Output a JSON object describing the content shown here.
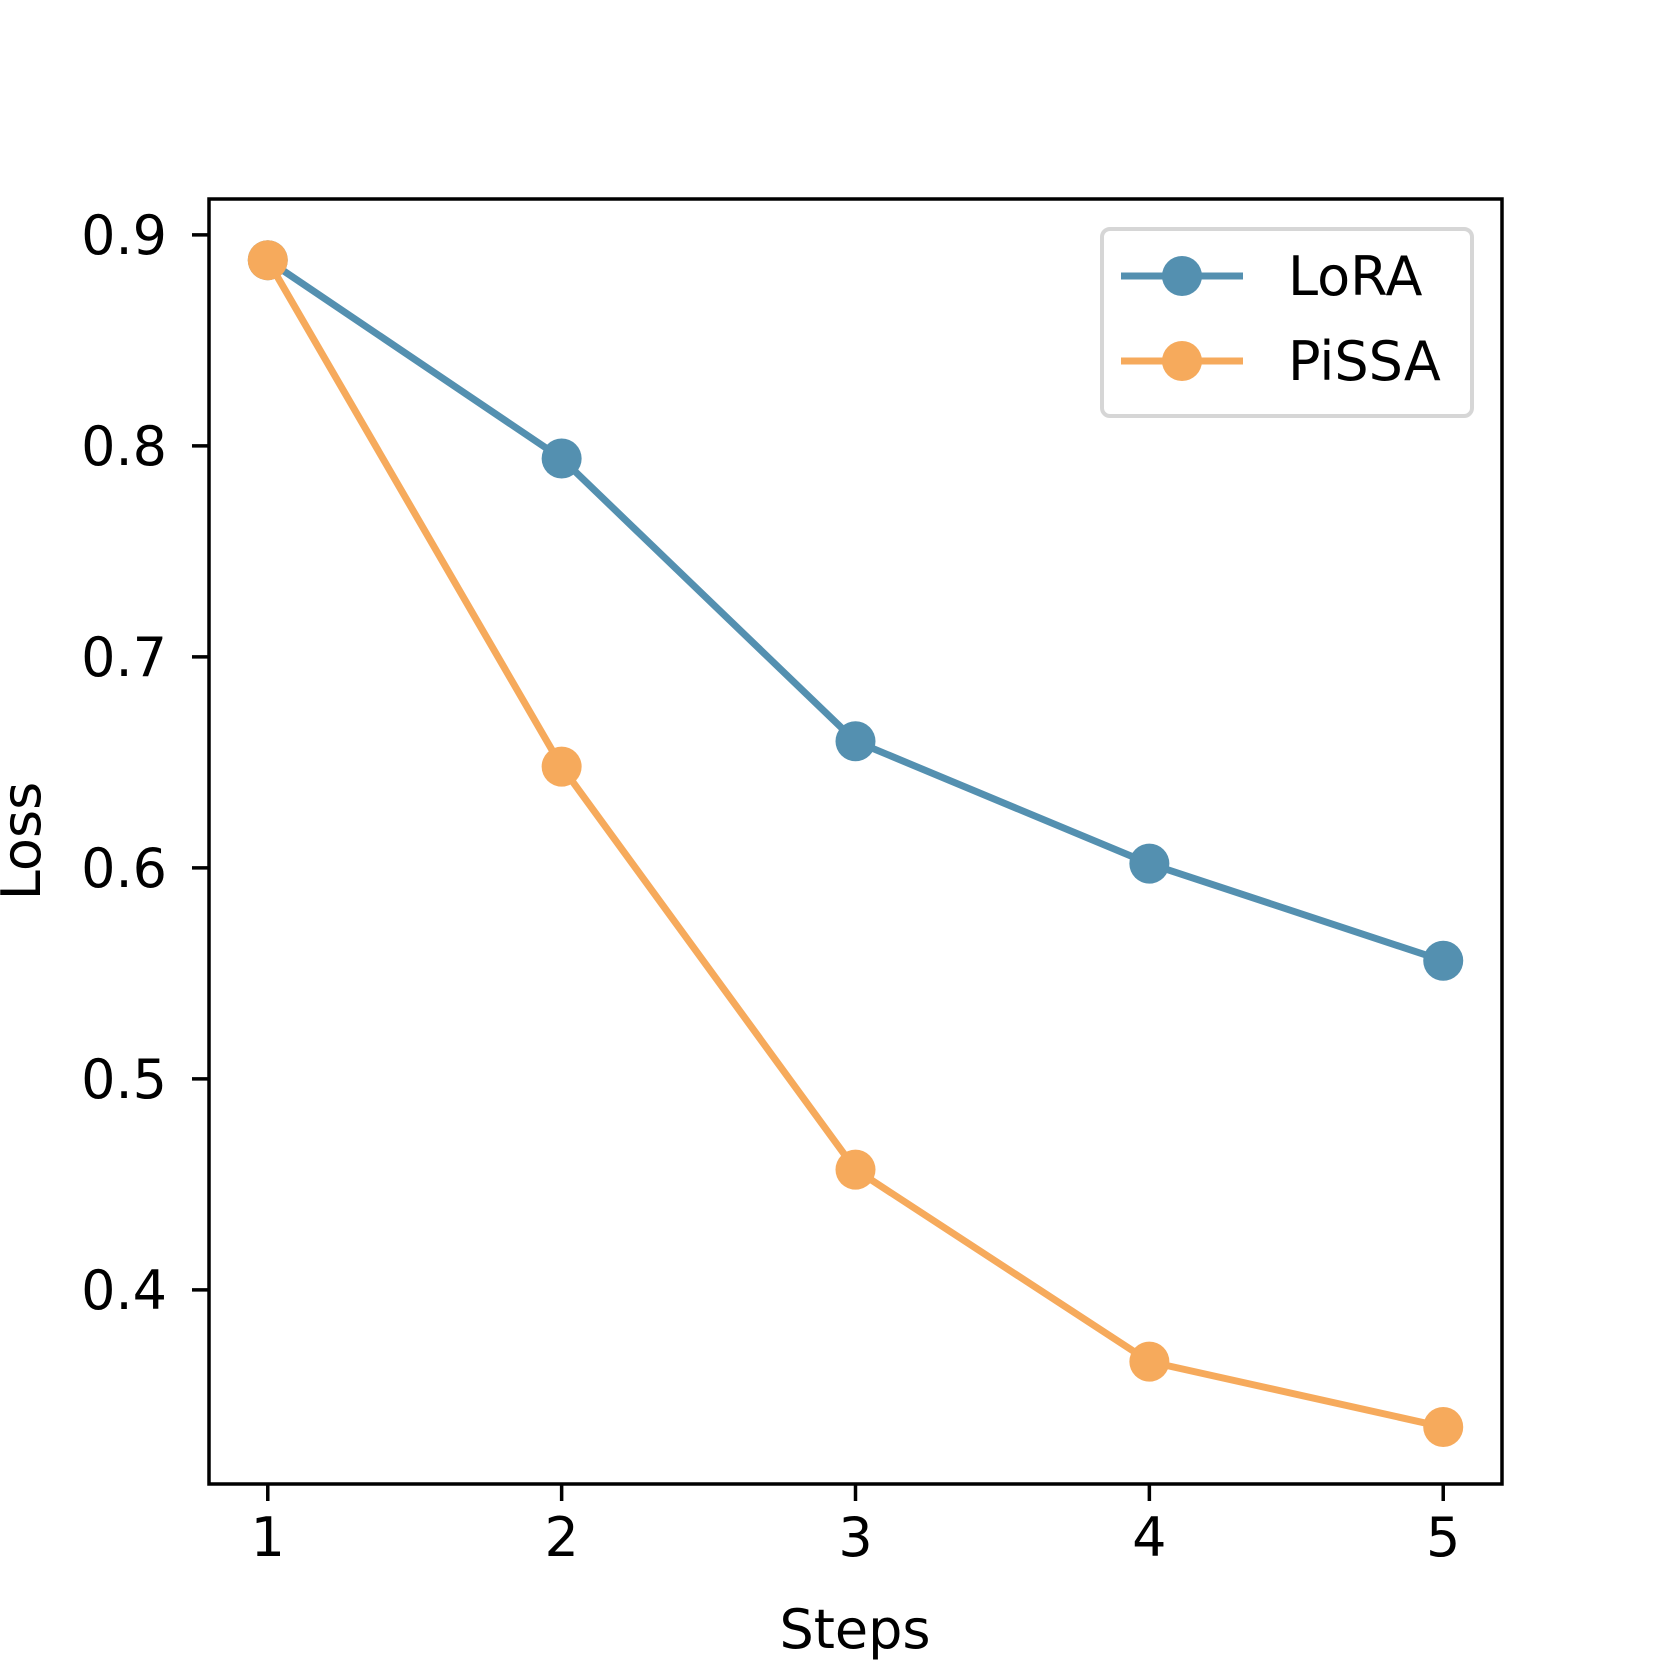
{
  "chart_data": {
    "type": "line",
    "title": "",
    "xlabel": "Steps",
    "ylabel": "Loss",
    "x": [
      1,
      2,
      3,
      4,
      5
    ],
    "xlim": [
      0.8,
      5.2
    ],
    "ylim": [
      0.308,
      0.917
    ],
    "xticks": [
      1,
      2,
      3,
      4,
      5
    ],
    "xtick_labels": [
      "1",
      "2",
      "3",
      "4",
      "5"
    ],
    "yticks": [
      0.4,
      0.5,
      0.6,
      0.7,
      0.8,
      0.9
    ],
    "ytick_labels": [
      "0.4",
      "0.5",
      "0.6",
      "0.7",
      "0.8",
      "0.9"
    ],
    "grid": false,
    "legend_position": "top-right",
    "series": [
      {
        "name": "LoRA",
        "color": "#5490b0",
        "values": [
          0.888,
          0.794,
          0.66,
          0.602,
          0.556
        ]
      },
      {
        "name": "PiSSA",
        "color": "#f6aa5c",
        "values": [
          0.888,
          0.648,
          0.457,
          0.366,
          0.335
        ]
      }
    ]
  }
}
